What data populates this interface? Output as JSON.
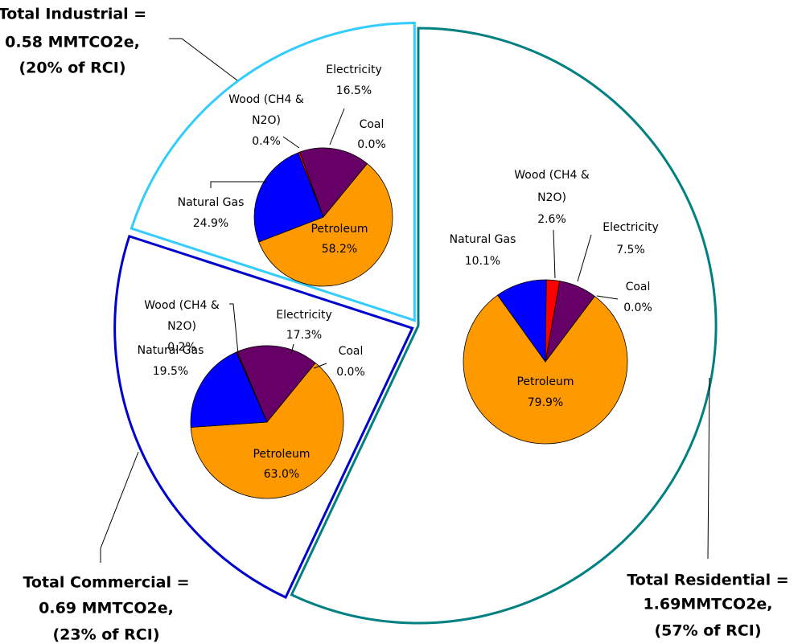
{
  "chart_data": [
    {
      "type": "pie",
      "value_labels": [
        [
          "Total Residential =",
          "1.69MMTCO2e,",
          "(57% of RCI)"
        ],
        [
          "Total Commercial =",
          "0.69 MMTCO2e,",
          "(23% of RCI)"
        ],
        [
          "Total Industrial =",
          "0.58 MMTCO2e,",
          "(20% of RCI)"
        ]
      ],
      "values": [
        57,
        23,
        20
      ],
      "colors": [
        "#008080",
        "#0000cc",
        "#33ccff"
      ]
    },
    {
      "type": "pie",
      "categories": [
        [
          "Electricity"
        ],
        [
          "Coal"
        ],
        [
          "Petroleum"
        ],
        [
          "Natural Gas"
        ],
        [
          "Wood (CH4 &",
          "N2O)"
        ]
      ],
      "values": [
        7.5,
        0.0,
        79.9,
        10.1,
        2.6
      ],
      "value_labels": [
        "7.5%",
        "0.0%",
        "79.9%",
        "10.1%",
        "2.6%"
      ],
      "colors": [
        "#660066",
        "#000000",
        "#ff9900",
        "#0000ff",
        "#ff0000"
      ]
    },
    {
      "type": "pie",
      "categories": [
        [
          "Electricity"
        ],
        [
          "Coal"
        ],
        [
          "Petroleum"
        ],
        [
          "Natural Gas"
        ],
        [
          "Wood (CH4 &",
          "N2O)"
        ]
      ],
      "values": [
        17.3,
        0.0,
        63.0,
        19.5,
        0.2
      ],
      "value_labels": [
        "17.3%",
        "0.0%",
        "63.0%",
        "19.5%",
        "0.2%"
      ],
      "colors": [
        "#660066",
        "#000000",
        "#ff9900",
        "#0000ff",
        "#ff0000"
      ]
    },
    {
      "type": "pie",
      "categories": [
        [
          "Electricity"
        ],
        [
          "Coal"
        ],
        [
          "Petroleum"
        ],
        [
          "Natural Gas"
        ],
        [
          "Wood (CH4 &",
          "N2O)"
        ]
      ],
      "values": [
        16.5,
        0.0,
        58.2,
        24.9,
        0.4
      ],
      "value_labels": [
        "16.5%",
        "0.0%",
        "58.2%",
        "24.9%",
        "0.4%"
      ],
      "colors": [
        "#660066",
        "#000000",
        "#ff9900",
        "#0000ff",
        "#ff0000"
      ]
    }
  ]
}
